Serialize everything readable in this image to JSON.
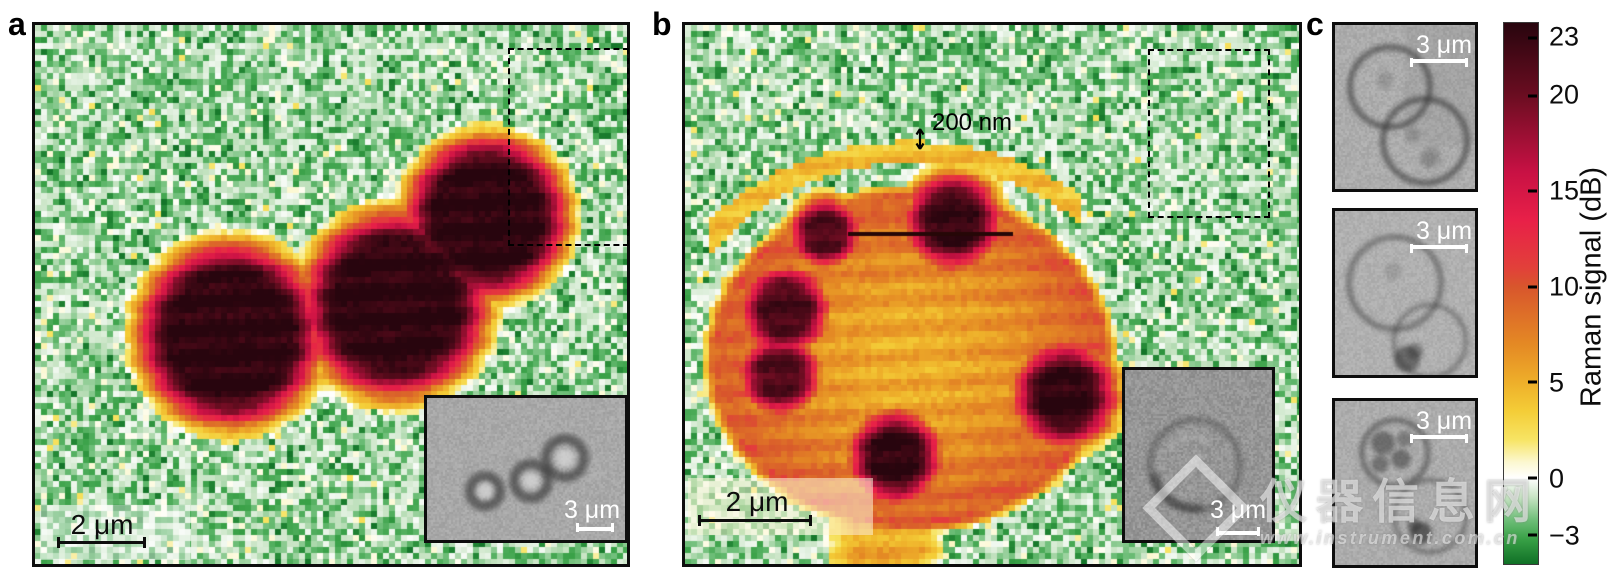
{
  "figure": {
    "panels": {
      "a": {
        "label": "a",
        "scale_bar": "2 μm",
        "inset_scale_bar": "3 μm"
      },
      "b": {
        "label": "b",
        "annotation_200nm": "200 nm",
        "scale_bar": "2 μm",
        "inset_scale_bar": "3 μm"
      },
      "c": {
        "label": "c",
        "images": [
          {
            "scale_bar": "3 μm"
          },
          {
            "scale_bar": "3 μm"
          },
          {
            "scale_bar": "3 μm"
          }
        ]
      }
    },
    "colorbar": {
      "label": "Raman signal (dB)",
      "ticks": [
        23,
        20,
        15,
        10,
        5,
        0,
        -3
      ]
    },
    "watermark": {
      "title": "仪器信息网",
      "url": "www.instrument.com.cn"
    }
  },
  "chart_data": {
    "type": "heatmap",
    "panels": [
      {
        "id": "a",
        "content": "Raman map: three round cells, signal ~20-23 dB in cell bodies, ~0 dB noisy green background",
        "scale_bar": "2 μm",
        "roi": "dashed rectangle over background region",
        "inset": "bright-field image of the three cells, scale 3 μm"
      },
      {
        "id": "b",
        "content": "Raman map: one large cell, body ~5-10 dB (orange) with ~20-23 dB dark organelles; detached membrane arc annotated",
        "annotation": "200 nm",
        "scale_bar": "2 μm",
        "roi": "dashed rectangle over background region",
        "inset": "bright-field image of the cell, scale 3 μm"
      },
      {
        "id": "c",
        "content": "three bright-field micrographs of cell pairs",
        "scale_bars": [
          "3 μm",
          "3 μm",
          "3 μm"
        ]
      }
    ],
    "colorbar": {
      "label": "Raman signal (dB)",
      "ticks": [
        23,
        20,
        15,
        10,
        5,
        0,
        -3
      ],
      "range_displayed": [
        -4.5,
        23.8
      ],
      "legend_position": "right",
      "color_stops": [
        {
          "value": 23.8,
          "color": "#28050e"
        },
        {
          "value": 20,
          "color": "#6b0d21"
        },
        {
          "value": 16,
          "color": "#c81144"
        },
        {
          "value": 13.5,
          "color": "#e82048"
        },
        {
          "value": 11,
          "color": "#e2403a"
        },
        {
          "value": 10,
          "color": "#d8562c"
        },
        {
          "value": 7,
          "color": "#e48924"
        },
        {
          "value": 5,
          "color": "#eeaf2a"
        },
        {
          "value": 3.5,
          "color": "#f4cd37"
        },
        {
          "value": 2,
          "color": "#f7e464"
        },
        {
          "value": 0.8,
          "color": "#fcf8d2"
        },
        {
          "value": 0,
          "color": "#ffffff"
        },
        {
          "value": -1,
          "color": "#c8e4c4"
        },
        {
          "value": -2.2,
          "color": "#6ebe78"
        },
        {
          "value": -3.2,
          "color": "#38a046"
        },
        {
          "value": -4.5,
          "color": "#107026"
        }
      ]
    }
  }
}
